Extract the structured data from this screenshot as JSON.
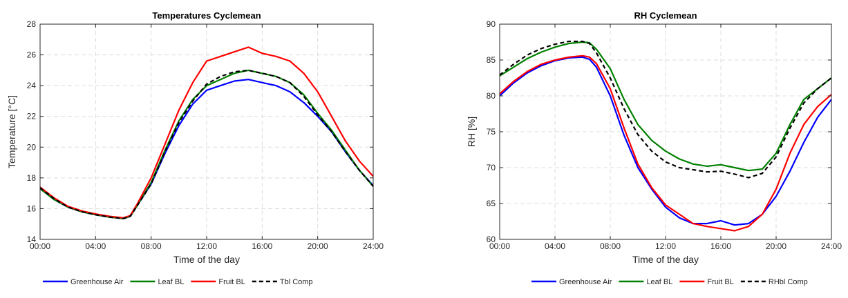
{
  "chart_data": [
    {
      "type": "line",
      "title": "Temperatures Cyclemean",
      "xlabel": "Time of the day",
      "ylabel": "Temperature [°C]",
      "xlim": [
        0,
        24
      ],
      "ylim": [
        14,
        28
      ],
      "xticks": [
        0,
        4,
        8,
        12,
        16,
        20,
        24
      ],
      "xtick_labels": [
        "00:00",
        "04:00",
        "08:00",
        "12:00",
        "16:00",
        "20:00",
        "24:00"
      ],
      "yticks": [
        14,
        16,
        18,
        20,
        22,
        24,
        26,
        28
      ],
      "grid": true,
      "legend_position": "bottom",
      "x": [
        0,
        1,
        2,
        3,
        4,
        5,
        6,
        6.5,
        7,
        8,
        9,
        10,
        11,
        12,
        13,
        14,
        15,
        16,
        17,
        18,
        19,
        20,
        21,
        22,
        23,
        24
      ],
      "series": [
        {
          "name": "Greenhouse Air",
          "color": "#0000ff",
          "style": "solid",
          "values": [
            17.3,
            16.6,
            16.1,
            15.8,
            15.6,
            15.45,
            15.35,
            15.5,
            16.2,
            17.6,
            19.6,
            21.4,
            22.8,
            23.7,
            24.0,
            24.3,
            24.4,
            24.2,
            24.0,
            23.6,
            22.9,
            22.0,
            21.0,
            19.7,
            18.5,
            17.5
          ]
        },
        {
          "name": "Leaf BL",
          "color": "#008000",
          "style": "solid",
          "values": [
            17.3,
            16.6,
            16.1,
            15.8,
            15.6,
            15.45,
            15.35,
            15.5,
            16.2,
            17.7,
            19.8,
            21.7,
            23.1,
            24.0,
            24.4,
            24.8,
            25.0,
            24.8,
            24.6,
            24.2,
            23.4,
            22.2,
            21.1,
            19.8,
            18.5,
            17.45
          ]
        },
        {
          "name": "Fruit BL",
          "color": "#ff0000",
          "style": "solid",
          "values": [
            17.4,
            16.7,
            16.15,
            15.85,
            15.65,
            15.5,
            15.4,
            15.55,
            16.3,
            18.0,
            20.2,
            22.4,
            24.2,
            25.6,
            25.9,
            26.2,
            26.5,
            26.1,
            25.9,
            25.6,
            24.8,
            23.6,
            22.0,
            20.4,
            19.1,
            18.1
          ]
        },
        {
          "name": "Tbl Comp",
          "color": "#000000",
          "style": "dashed",
          "values": [
            17.35,
            16.65,
            16.1,
            15.8,
            15.6,
            15.45,
            15.35,
            15.5,
            16.2,
            17.6,
            19.7,
            21.6,
            23.0,
            24.1,
            24.6,
            24.9,
            25.0,
            24.8,
            24.6,
            24.2,
            23.3,
            22.1,
            21.0,
            19.7,
            18.5,
            17.45
          ]
        }
      ]
    },
    {
      "type": "line",
      "title": "RH Cyclemean",
      "xlabel": "Time of the day",
      "ylabel": "RH [%]",
      "xlim": [
        0,
        24
      ],
      "ylim": [
        60,
        90
      ],
      "xticks": [
        0,
        4,
        8,
        12,
        16,
        20,
        24
      ],
      "xtick_labels": [
        "00:00",
        "04:00",
        "08:00",
        "12:00",
        "16:00",
        "20:00",
        "24:00"
      ],
      "yticks": [
        60,
        65,
        70,
        75,
        80,
        85,
        90
      ],
      "grid": true,
      "legend_position": "bottom",
      "x": [
        0,
        1,
        2,
        3,
        4,
        5,
        6,
        6.5,
        7,
        8,
        9,
        10,
        11,
        12,
        13,
        14,
        15,
        16,
        17,
        18,
        19,
        20,
        21,
        22,
        23,
        24
      ],
      "series": [
        {
          "name": "Greenhouse Air",
          "color": "#0000ff",
          "style": "solid",
          "values": [
            80.0,
            81.8,
            83.2,
            84.2,
            84.9,
            85.3,
            85.4,
            85.1,
            84.0,
            80.0,
            74.5,
            70.0,
            67.0,
            64.5,
            63.0,
            62.2,
            62.2,
            62.6,
            62.0,
            62.2,
            63.5,
            66.0,
            69.5,
            73.5,
            77.0,
            79.5
          ]
        },
        {
          "name": "Leaf BL",
          "color": "#008000",
          "style": "solid",
          "values": [
            82.8,
            84.0,
            85.2,
            86.1,
            86.8,
            87.3,
            87.5,
            87.4,
            86.5,
            83.8,
            79.5,
            76.0,
            73.8,
            72.3,
            71.2,
            70.5,
            70.2,
            70.4,
            70.0,
            69.6,
            69.8,
            72.0,
            76.0,
            79.5,
            81.0,
            82.5
          ]
        },
        {
          "name": "Fruit BL",
          "color": "#ff0000",
          "style": "solid",
          "values": [
            80.3,
            82.0,
            83.4,
            84.4,
            85.0,
            85.4,
            85.6,
            85.4,
            84.5,
            81.0,
            75.5,
            70.5,
            67.2,
            64.8,
            63.5,
            62.2,
            61.8,
            61.5,
            61.2,
            61.8,
            63.5,
            67.0,
            72.0,
            76.0,
            78.5,
            80.2
          ]
        },
        {
          "name": "RHbl Comp",
          "color": "#000000",
          "style": "dashed",
          "values": [
            82.9,
            84.4,
            85.7,
            86.6,
            87.2,
            87.6,
            87.6,
            87.3,
            86.0,
            82.5,
            78.2,
            74.6,
            72.3,
            70.8,
            70.0,
            69.7,
            69.4,
            69.5,
            69.1,
            68.6,
            69.2,
            71.5,
            75.5,
            79.0,
            81.0,
            82.5
          ]
        }
      ]
    }
  ]
}
